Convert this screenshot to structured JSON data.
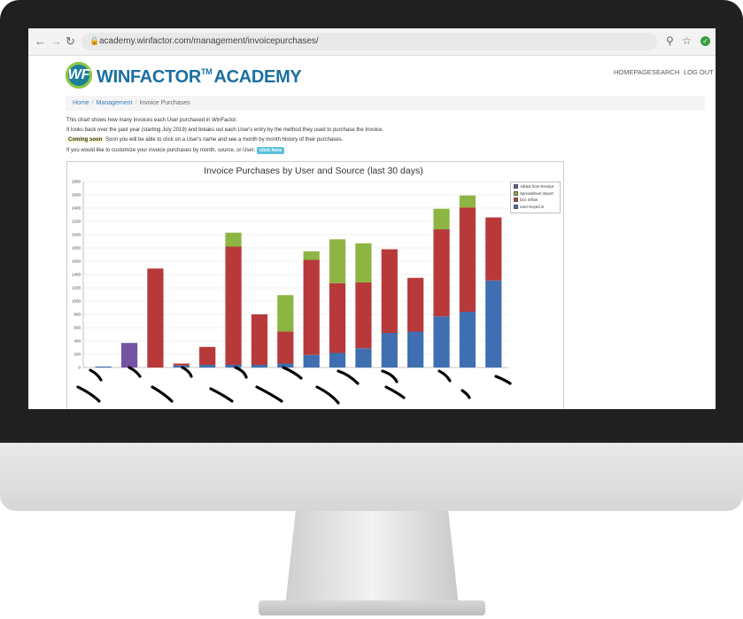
{
  "browser": {
    "url": "academy.winfactor.com/management/invoicepurchases/"
  },
  "header": {
    "logo_mark": "WF",
    "logo_text": "WINFACTOR",
    "logo_tm": "TM",
    "logo_text2": "ACADEMY",
    "nav": [
      "HOMEPAGE",
      "SEARCH",
      "LOG OUT"
    ]
  },
  "breadcrumb": {
    "home": "Home",
    "management": "Management",
    "current": "Invoice Purchases"
  },
  "intro": {
    "line1": "This chart shows how many invoices each User purchased in WinFactor.",
    "line2": "It looks back over the past year (starting July 2019) and breaks out each User's entry by the method they used to purchase the Invoice.",
    "coming_label": "Coming soon",
    "line3": "Soon you will be able to click on a User's name and see a month by month history of their purchases.",
    "line4": "If you would like to customize your invoice purchases by month, source, or User,",
    "click_here": "click here"
  },
  "colors": {
    "added_from_receipt": "#7453a2",
    "spreadsheet_import": "#8db543",
    "doc_inflow": "#b8393a",
    "user_keyed_in": "#3f6fb1"
  },
  "chart_data": {
    "type": "bar",
    "stacked": true,
    "title": "Invoice Purchases by User and Source (last 30 days)",
    "xlabel": "",
    "ylabel": "",
    "ylim": [
      0,
      2800
    ],
    "yticks": [
      0,
      200,
      400,
      600,
      800,
      1000,
      1200,
      1400,
      1600,
      1800,
      2000,
      2200,
      2400,
      2600,
      2800
    ],
    "grid": true,
    "legend_position": "top-right",
    "categories": [
      "",
      "",
      "",
      "",
      "",
      "",
      "",
      "",
      "",
      "",
      "",
      "",
      "",
      "",
      "",
      ""
    ],
    "series": [
      {
        "name": "User-Keyed in",
        "color": "#3f6fb1",
        "values": [
          15,
          0,
          0,
          30,
          40,
          40,
          40,
          60,
          190,
          220,
          290,
          520,
          540,
          770,
          840,
          1310
        ]
      },
      {
        "name": "Doc Inflow",
        "color": "#b8393a",
        "values": [
          0,
          0,
          1490,
          30,
          270,
          1780,
          760,
          480,
          1430,
          1050,
          990,
          1260,
          810,
          1310,
          1570,
          950
        ]
      },
      {
        "name": "Spreadsheet Import",
        "color": "#8db543",
        "values": [
          0,
          0,
          0,
          0,
          0,
          210,
          0,
          550,
          130,
          660,
          590,
          0,
          0,
          310,
          180,
          0
        ]
      },
      {
        "name": "Added from Receipt",
        "color": "#7453a2",
        "values": [
          0,
          370,
          0,
          0,
          0,
          0,
          0,
          0,
          0,
          0,
          0,
          0,
          0,
          0,
          0,
          0
        ]
      }
    ]
  }
}
